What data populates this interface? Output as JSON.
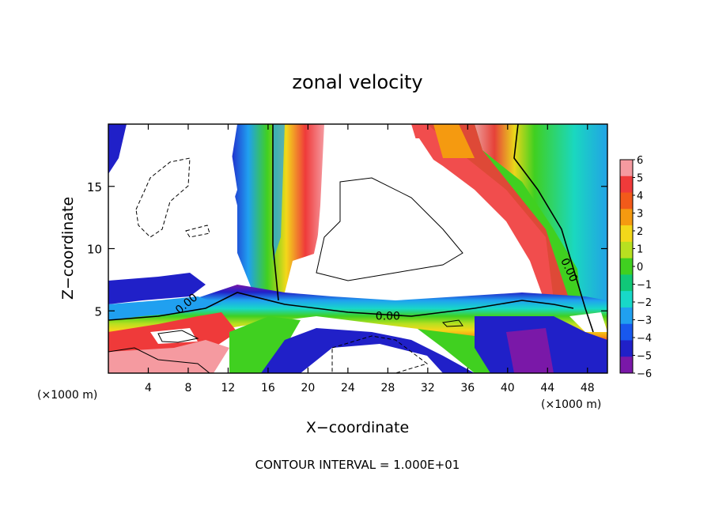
{
  "chart_data": {
    "type": "heatmap",
    "title": "zonal velocity",
    "xlabel": "X−coordinate",
    "ylabel": "Z−coordinate",
    "x_unit_left": "(×1000 m)",
    "x_unit_right": "(×1000 m)",
    "xlim": [
      0,
      50
    ],
    "ylim": [
      0,
      20
    ],
    "x_ticks": [
      4,
      8,
      12,
      16,
      20,
      24,
      28,
      32,
      36,
      40,
      44,
      48
    ],
    "y_ticks": [
      5,
      10,
      15
    ],
    "contour_interval_text": "CONTOUR INTERVAL = 1.000E+01",
    "contour_labels": [
      {
        "text": "0.00",
        "x": 7.8,
        "z": 5.6,
        "rotate": -40
      },
      {
        "text": "0.00",
        "x": 28.0,
        "z": 4.6,
        "rotate": 0
      },
      {
        "text": "0.00",
        "x": 46.2,
        "z": 8.3,
        "rotate": 65
      }
    ],
    "colorbar": {
      "labels": [
        "6",
        "5",
        "4",
        "3",
        "2",
        "1",
        "0",
        "−1",
        "−2",
        "−3",
        "−4",
        "−5",
        "−6"
      ],
      "colors": [
        "#f59aa0",
        "#ef3a3a",
        "#f25a1a",
        "#f59a10",
        "#f3d81a",
        "#b8e020",
        "#40d020",
        "#10c878",
        "#18d8c8",
        "#20a0f0",
        "#1858ee",
        "#2020c8",
        "#7a18a8"
      ]
    }
  }
}
